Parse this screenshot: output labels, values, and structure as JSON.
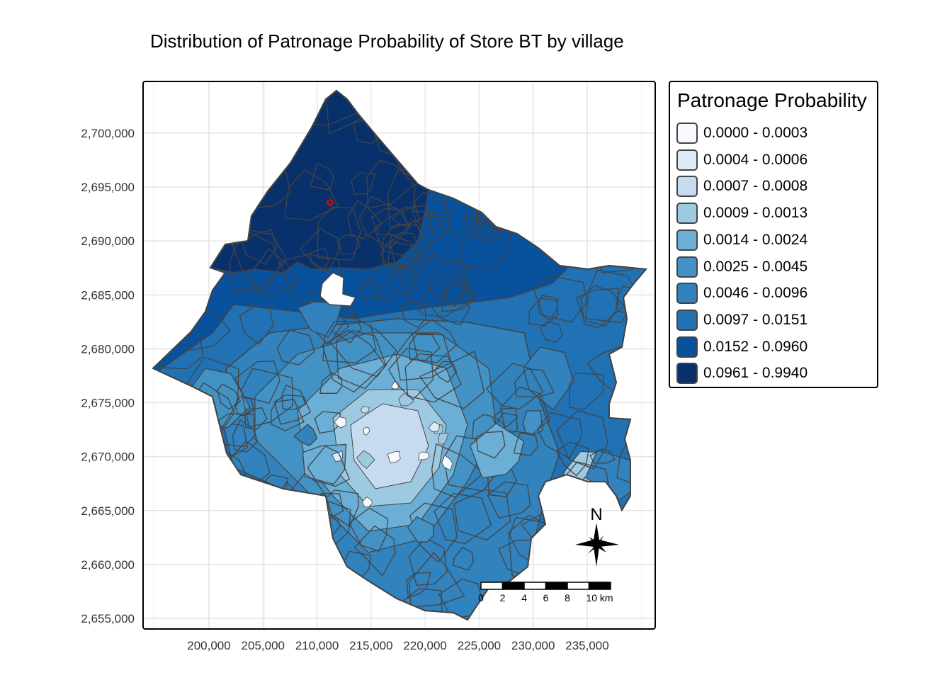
{
  "title": "Distribution of Patronage Probability of Store BT by village",
  "axes": {
    "x_ticks": [
      "200,000",
      "205,000",
      "210,000",
      "215,000",
      "220,000",
      "225,000",
      "230,000",
      "235,000"
    ],
    "x_values": [
      200000,
      205000,
      210000,
      215000,
      220000,
      225000,
      230000,
      235000
    ],
    "y_ticks": [
      "2,700,000",
      "2,695,000",
      "2,690,000",
      "2,685,000",
      "2,680,000",
      "2,675,000",
      "2,670,000",
      "2,665,000",
      "2,660,000",
      "2,655,000"
    ],
    "y_values": [
      2700000,
      2695000,
      2690000,
      2685000,
      2680000,
      2675000,
      2670000,
      2665000,
      2660000,
      2655000
    ],
    "grid": true
  },
  "legend": {
    "title": "Patronage Probability",
    "placement": "right",
    "items": [
      {
        "label": "0.0000 - 0.0003",
        "color": "#f7fbff"
      },
      {
        "label": "0.0004 - 0.0006",
        "color": "#deebf7"
      },
      {
        "label": "0.0007 - 0.0008",
        "color": "#c6dbef"
      },
      {
        "label": "0.0009 - 0.0013",
        "color": "#9ecae1"
      },
      {
        "label": "0.0014 - 0.0024",
        "color": "#6baed6"
      },
      {
        "label": "0.0025 - 0.0045",
        "color": "#4292c6"
      },
      {
        "label": "0.0046 - 0.0096",
        "color": "#3182bd"
      },
      {
        "label": "0.0097 - 0.0151",
        "color": "#2171b5"
      },
      {
        "label": "0.0152 - 0.0960",
        "color": "#08519c"
      },
      {
        "label": "0.0961 - 0.9940",
        "color": "#08306b"
      }
    ]
  },
  "north_arrow": {
    "label": "N"
  },
  "scale_bar": {
    "labels": [
      "0",
      "2",
      "4",
      "6",
      "8",
      "10 km"
    ]
  },
  "store_marker_color": "#ff0000",
  "border_color": "#444444"
}
